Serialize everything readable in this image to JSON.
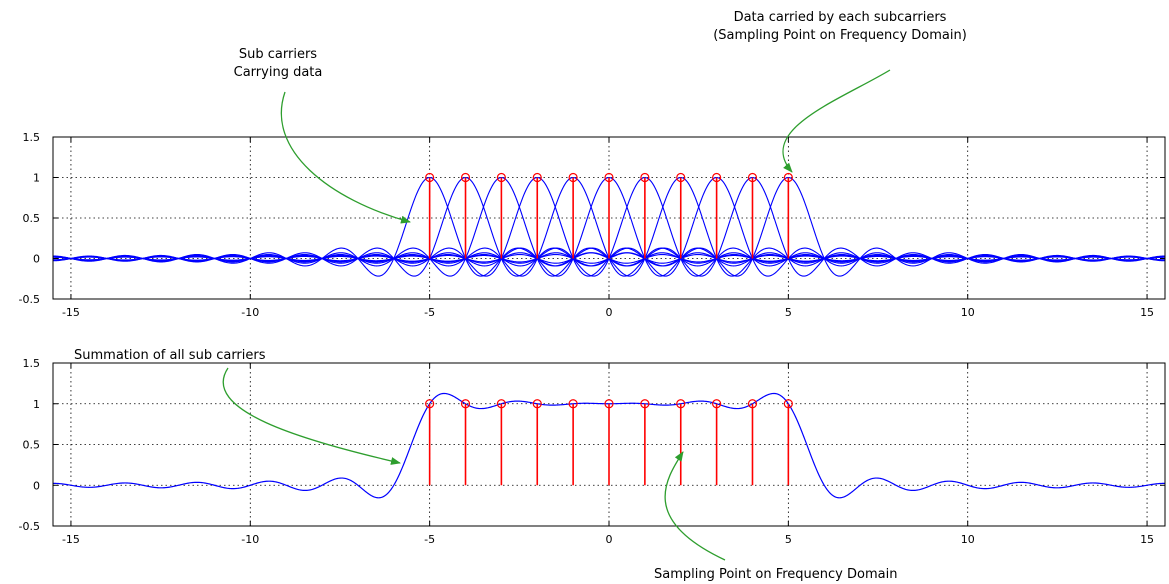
{
  "colors": {
    "subcarrier_curves": "#0000ff",
    "sampling_stems": "#ff0000",
    "annotation_arrows": "#2e9e2e",
    "axes": "#000000",
    "grid": "#000000"
  },
  "chart_data": [
    {
      "type": "line",
      "xlim": [
        -15.5,
        15.5
      ],
      "ylim": [
        -0.5,
        1.5
      ],
      "x_ticks": [
        -15,
        -10,
        -5,
        0,
        5,
        10,
        15
      ],
      "y_ticks": [
        -0.5,
        0,
        0.5,
        1,
        1.5
      ],
      "x_tick_labels": [
        "-15",
        "-10",
        "-5",
        "0",
        "5",
        "10",
        "15"
      ],
      "y_tick_labels": [
        "-0.5",
        "0",
        "0.5",
        "1",
        "1.5"
      ],
      "grid": true,
      "series": [
        {
          "kind": "sinc-family",
          "centers": [
            -5,
            -4,
            -3,
            -2,
            -1,
            0,
            1,
            2,
            3,
            4,
            5
          ]
        }
      ],
      "stems": {
        "x": [
          -5,
          -4,
          -3,
          -2,
          -1,
          0,
          1,
          2,
          3,
          4,
          5
        ],
        "y": [
          1,
          1,
          1,
          1,
          1,
          1,
          1,
          1,
          1,
          1,
          1
        ]
      }
    },
    {
      "type": "line",
      "xlim": [
        -15.5,
        15.5
      ],
      "ylim": [
        -0.5,
        1.5
      ],
      "x_ticks": [
        -15,
        -10,
        -5,
        0,
        5,
        10,
        15
      ],
      "y_ticks": [
        -0.5,
        0,
        0.5,
        1,
        1.5
      ],
      "x_tick_labels": [
        "-15",
        "-10",
        "-5",
        "0",
        "5",
        "10",
        "15"
      ],
      "y_tick_labels": [
        "-0.5",
        "0",
        "0.5",
        "1",
        "1.5"
      ],
      "grid": true,
      "series": [
        {
          "kind": "sinc-sum",
          "centers": [
            -5,
            -4,
            -3,
            -2,
            -1,
            0,
            1,
            2,
            3,
            4,
            5
          ]
        }
      ],
      "stems": {
        "x": [
          -5,
          -4,
          -3,
          -2,
          -1,
          0,
          1,
          2,
          3,
          4,
          5
        ],
        "y": [
          1,
          1,
          1,
          1,
          1,
          1,
          1,
          1,
          1,
          1,
          1
        ]
      }
    }
  ],
  "annotations": {
    "sub_carriers": [
      "Sub carriers",
      "Carrying data"
    ],
    "data_carried": [
      "Data carried by each subcarriers",
      "(Sampling Point on Frequency Domain)"
    ],
    "summation": "Summation of all sub carriers",
    "sampling_point": "Sampling Point on Frequency Domain"
  }
}
